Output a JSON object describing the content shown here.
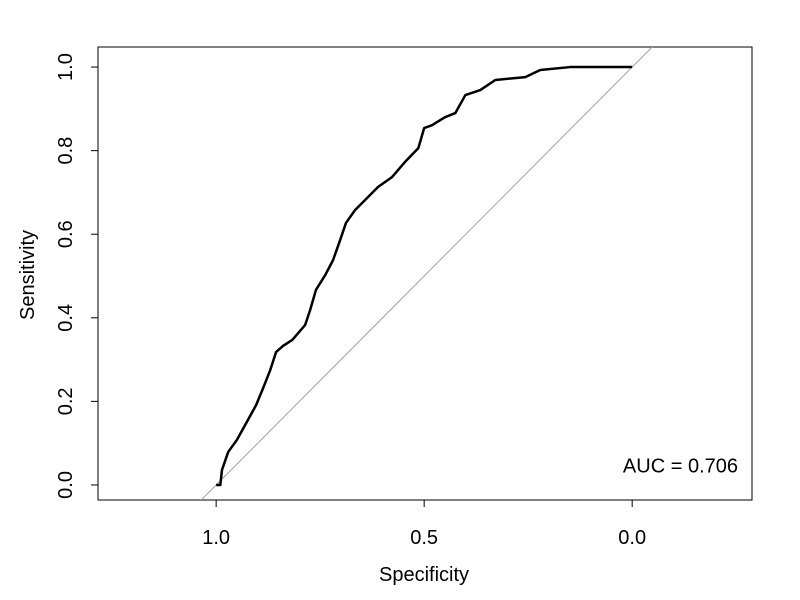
{
  "chart_data": {
    "type": "line",
    "xlabel": "Specificity",
    "ylabel": "Sensitivity",
    "annotation": "AUC = 0.706",
    "xlim": [
      1.284,
      -0.288
    ],
    "ylim": [
      -0.036,
      1.048
    ],
    "xticks": [
      {
        "value": 1.0,
        "label": "1.0"
      },
      {
        "value": 0.5,
        "label": "0.5"
      },
      {
        "value": 0.0,
        "label": "0.0"
      }
    ],
    "yticks": [
      {
        "value": 0.0,
        "label": "0.0"
      },
      {
        "value": 0.2,
        "label": "0.2"
      },
      {
        "value": 0.4,
        "label": "0.4"
      },
      {
        "value": 0.6,
        "label": "0.6"
      },
      {
        "value": 0.8,
        "label": "0.8"
      },
      {
        "value": 1.0,
        "label": "1.0"
      }
    ],
    "reference_color": "#a0a0a0",
    "series": [
      {
        "color": "#000000",
        "x": [
          1.0,
          0.99,
          0.986,
          0.971,
          0.95,
          0.93,
          0.904,
          0.887,
          0.87,
          0.856,
          0.839,
          0.817,
          0.786,
          0.774,
          0.76,
          0.738,
          0.719,
          0.702,
          0.688,
          0.666,
          0.642,
          0.611,
          0.577,
          0.546,
          0.514,
          0.5,
          0.481,
          0.45,
          0.425,
          0.401,
          0.365,
          0.329,
          0.257,
          0.221,
          0.149,
          0.0
        ],
        "values": [
          0.0,
          0.0,
          0.036,
          0.079,
          0.108,
          0.144,
          0.191,
          0.232,
          0.275,
          0.318,
          0.333,
          0.347,
          0.383,
          0.419,
          0.467,
          0.502,
          0.538,
          0.586,
          0.627,
          0.658,
          0.682,
          0.713,
          0.737,
          0.773,
          0.806,
          0.854,
          0.861,
          0.88,
          0.89,
          0.933,
          0.945,
          0.969,
          0.976,
          0.993,
          1.0,
          1.0
        ]
      }
    ]
  }
}
